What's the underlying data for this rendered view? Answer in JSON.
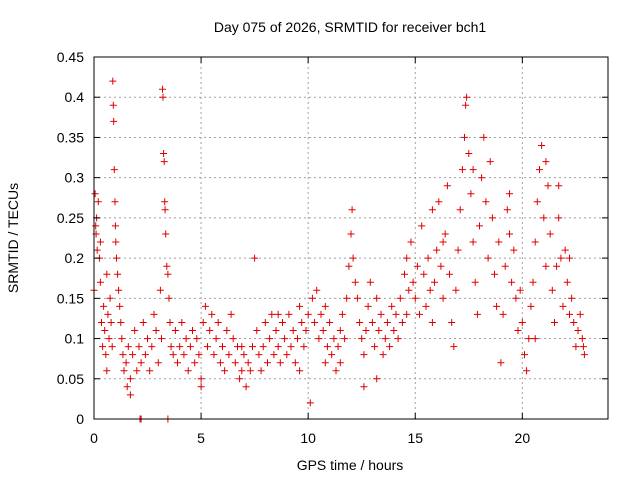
{
  "chart_data": {
    "type": "scatter",
    "title": "Day 075 of 2026, SRMTID for receiver bch1",
    "xlabel": "GPS time / hours",
    "ylabel": "SRMTID / TECUs",
    "xlim": [
      0,
      24
    ],
    "ylim": [
      0,
      0.45
    ],
    "x_ticks": [
      0,
      5,
      10,
      15,
      20
    ],
    "y_ticks": [
      0,
      0.05,
      0.1,
      0.15,
      0.2,
      0.25,
      0.3,
      0.35,
      0.4,
      0.45
    ],
    "x_tick_labels": [
      "0",
      "5",
      "10",
      "15",
      "20"
    ],
    "y_tick_labels": [
      "0",
      "0.05",
      "0.1",
      "0.15",
      "0.2",
      "0.25",
      "0.3",
      "0.35",
      "0.4",
      "0.45"
    ],
    "grid": true,
    "marker": "+",
    "color": "#e00000",
    "series": [
      {
        "name": "bch1",
        "points": [
          [
            0.0,
            0.16
          ],
          [
            0.05,
            0.28
          ],
          [
            0.08,
            0.24
          ],
          [
            0.1,
            0.23
          ],
          [
            0.12,
            0.25
          ],
          [
            0.15,
            0.21
          ],
          [
            0.2,
            0.27
          ],
          [
            0.25,
            0.2
          ],
          [
            0.3,
            0.17
          ],
          [
            0.35,
            0.12
          ],
          [
            0.4,
            0.09
          ],
          [
            0.45,
            0.14
          ],
          [
            0.5,
            0.11
          ],
          [
            0.55,
            0.08
          ],
          [
            0.6,
            0.18
          ],
          [
            0.65,
            0.13
          ],
          [
            0.7,
            0.1
          ],
          [
            0.75,
            0.15
          ],
          [
            0.8,
            0.12
          ],
          [
            0.85,
            0.09
          ],
          [
            0.88,
            0.42
          ],
          [
            0.9,
            0.39
          ],
          [
            0.92,
            0.37
          ],
          [
            0.95,
            0.31
          ],
          [
            0.98,
            0.27
          ],
          [
            1.0,
            0.24
          ],
          [
            1.02,
            0.22
          ],
          [
            1.05,
            0.2
          ],
          [
            1.1,
            0.18
          ],
          [
            1.15,
            0.16
          ],
          [
            1.2,
            0.14
          ],
          [
            1.25,
            0.12
          ],
          [
            1.3,
            0.1
          ],
          [
            1.35,
            0.08
          ],
          [
            1.4,
            0.06
          ],
          [
            1.5,
            0.07
          ],
          [
            1.55,
            0.04
          ],
          [
            1.6,
            0.09
          ],
          [
            1.7,
            0.05
          ],
          [
            1.8,
            0.08
          ],
          [
            1.9,
            0.11
          ],
          [
            2.0,
            0.06
          ],
          [
            2.1,
            0.09
          ],
          [
            2.2,
            0.07
          ],
          [
            2.3,
            0.12
          ],
          [
            2.4,
            0.08
          ],
          [
            2.5,
            0.1
          ],
          [
            2.6,
            0.06
          ],
          [
            2.7,
            0.09
          ],
          [
            2.8,
            0.13
          ],
          [
            2.9,
            0.11
          ],
          [
            3.0,
            0.07
          ],
          [
            3.1,
            0.16
          ],
          [
            3.15,
            0.1
          ],
          [
            3.2,
            0.41
          ],
          [
            3.22,
            0.4
          ],
          [
            3.25,
            0.33
          ],
          [
            3.28,
            0.32
          ],
          [
            3.3,
            0.27
          ],
          [
            3.32,
            0.26
          ],
          [
            3.35,
            0.23
          ],
          [
            3.4,
            0.19
          ],
          [
            3.45,
            0.18
          ],
          [
            3.5,
            0.15
          ],
          [
            3.55,
            0.12
          ],
          [
            3.6,
            0.09
          ],
          [
            3.7,
            0.08
          ],
          [
            3.8,
            0.11
          ],
          [
            3.9,
            0.07
          ],
          [
            4.0,
            0.09
          ],
          [
            4.1,
            0.12
          ],
          [
            4.2,
            0.08
          ],
          [
            4.3,
            0.1
          ],
          [
            4.4,
            0.06
          ],
          [
            4.5,
            0.09
          ],
          [
            4.6,
            0.11
          ],
          [
            4.7,
            0.07
          ],
          [
            4.8,
            0.1
          ],
          [
            4.9,
            0.08
          ],
          [
            5.0,
            0.05
          ],
          [
            5.1,
            0.12
          ],
          [
            5.2,
            0.14
          ],
          [
            5.3,
            0.09
          ],
          [
            5.4,
            0.11
          ],
          [
            5.5,
            0.13
          ],
          [
            5.6,
            0.08
          ],
          [
            5.7,
            0.1
          ],
          [
            5.8,
            0.12
          ],
          [
            5.9,
            0.07
          ],
          [
            6.0,
            0.09
          ],
          [
            6.1,
            0.06
          ],
          [
            6.2,
            0.11
          ],
          [
            6.3,
            0.08
          ],
          [
            6.4,
            0.13
          ],
          [
            6.5,
            0.1
          ],
          [
            6.6,
            0.07
          ],
          [
            6.7,
            0.09
          ],
          [
            6.8,
            0.05
          ],
          [
            6.9,
            0.06
          ],
          [
            7.0,
            0.08
          ],
          [
            7.1,
            0.04
          ],
          [
            7.2,
            0.07
          ],
          [
            7.3,
            0.06
          ],
          [
            7.4,
            0.09
          ],
          [
            7.5,
            0.2
          ],
          [
            7.6,
            0.11
          ],
          [
            7.7,
            0.08
          ],
          [
            7.8,
            0.06
          ],
          [
            7.9,
            0.09
          ],
          [
            8.0,
            0.12
          ],
          [
            8.1,
            0.07
          ],
          [
            8.2,
            0.1
          ],
          [
            8.3,
            0.13
          ],
          [
            8.4,
            0.08
          ],
          [
            8.5,
            0.11
          ],
          [
            8.6,
            0.09
          ],
          [
            8.7,
            0.07
          ],
          [
            8.8,
            0.12
          ],
          [
            8.9,
            0.1
          ],
          [
            9.0,
            0.08
          ],
          [
            9.1,
            0.13
          ],
          [
            9.2,
            0.09
          ],
          [
            9.3,
            0.11
          ],
          [
            9.4,
            0.07
          ],
          [
            9.5,
            0.1
          ],
          [
            9.6,
            0.14
          ],
          [
            9.7,
            0.12
          ],
          [
            9.8,
            0.09
          ],
          [
            9.9,
            0.11
          ],
          [
            10.0,
            0.13
          ],
          [
            10.1,
            0.02
          ],
          [
            10.2,
            0.15
          ],
          [
            10.3,
            0.12
          ],
          [
            10.4,
            0.16
          ],
          [
            10.5,
            0.1
          ],
          [
            10.6,
            0.13
          ],
          [
            10.7,
            0.11
          ],
          [
            10.8,
            0.14
          ],
          [
            10.9,
            0.09
          ],
          [
            11.0,
            0.12
          ],
          [
            11.1,
            0.08
          ],
          [
            11.2,
            0.1
          ],
          [
            11.3,
            0.06
          ],
          [
            11.4,
            0.09
          ],
          [
            11.5,
            0.11
          ],
          [
            11.6,
            0.13
          ],
          [
            11.7,
            0.1
          ],
          [
            11.8,
            0.15
          ],
          [
            11.9,
            0.19
          ],
          [
            12.0,
            0.23
          ],
          [
            12.05,
            0.26
          ],
          [
            12.1,
            0.2
          ],
          [
            12.2,
            0.17
          ],
          [
            12.3,
            0.15
          ],
          [
            12.4,
            0.12
          ],
          [
            12.5,
            0.1
          ],
          [
            12.6,
            0.08
          ],
          [
            12.7,
            0.11
          ],
          [
            12.8,
            0.14
          ],
          [
            12.9,
            0.17
          ],
          [
            13.0,
            0.12
          ],
          [
            13.1,
            0.09
          ],
          [
            13.2,
            0.15
          ],
          [
            13.3,
            0.11
          ],
          [
            13.4,
            0.13
          ],
          [
            13.5,
            0.08
          ],
          [
            13.6,
            0.1
          ],
          [
            13.7,
            0.12
          ],
          [
            13.8,
            0.09
          ],
          [
            13.9,
            0.14
          ],
          [
            14.0,
            0.11
          ],
          [
            14.1,
            0.13
          ],
          [
            14.2,
            0.1
          ],
          [
            14.3,
            0.15
          ],
          [
            14.4,
            0.12
          ],
          [
            14.5,
            0.18
          ],
          [
            14.6,
            0.2
          ],
          [
            14.7,
            0.16
          ],
          [
            14.8,
            0.22
          ],
          [
            14.9,
            0.17
          ],
          [
            15.0,
            0.15
          ],
          [
            15.1,
            0.19
          ],
          [
            15.2,
            0.13
          ],
          [
            15.3,
            0.24
          ],
          [
            15.4,
            0.18
          ],
          [
            15.5,
            0.14
          ],
          [
            15.6,
            0.2
          ],
          [
            15.7,
            0.16
          ],
          [
            15.8,
            0.12
          ],
          [
            15.9,
            0.17
          ],
          [
            16.0,
            0.21
          ],
          [
            16.1,
            0.27
          ],
          [
            16.2,
            0.19
          ],
          [
            16.3,
            0.15
          ],
          [
            16.4,
            0.23
          ],
          [
            16.5,
            0.29
          ],
          [
            16.6,
            0.18
          ],
          [
            16.7,
            0.12
          ],
          [
            16.8,
            0.09
          ],
          [
            16.9,
            0.16
          ],
          [
            17.0,
            0.21
          ],
          [
            17.1,
            0.26
          ],
          [
            17.2,
            0.31
          ],
          [
            17.3,
            0.35
          ],
          [
            17.35,
            0.39
          ],
          [
            17.4,
            0.4
          ],
          [
            17.5,
            0.33
          ],
          [
            17.6,
            0.28
          ],
          [
            17.7,
            0.22
          ],
          [
            17.8,
            0.17
          ],
          [
            17.9,
            0.13
          ],
          [
            18.0,
            0.24
          ],
          [
            18.1,
            0.3
          ],
          [
            18.2,
            0.35
          ],
          [
            18.3,
            0.27
          ],
          [
            18.4,
            0.2
          ],
          [
            18.5,
            0.32
          ],
          [
            18.6,
            0.25
          ],
          [
            18.7,
            0.18
          ],
          [
            18.8,
            0.14
          ],
          [
            18.9,
            0.22
          ],
          [
            19.0,
            0.07
          ],
          [
            19.1,
            0.13
          ],
          [
            19.2,
            0.19
          ],
          [
            19.3,
            0.26
          ],
          [
            19.4,
            0.23
          ],
          [
            19.5,
            0.17
          ],
          [
            19.6,
            0.21
          ],
          [
            19.7,
            0.15
          ],
          [
            19.8,
            0.11
          ],
          [
            19.9,
            0.16
          ],
          [
            20.0,
            0.12
          ],
          [
            20.1,
            0.08
          ],
          [
            20.2,
            0.06
          ],
          [
            20.3,
            0.1
          ],
          [
            20.4,
            0.14
          ],
          [
            20.5,
            0.17
          ],
          [
            20.6,
            0.22
          ],
          [
            20.7,
            0.27
          ],
          [
            20.8,
            0.31
          ],
          [
            20.9,
            0.34
          ],
          [
            21.0,
            0.25
          ],
          [
            21.1,
            0.19
          ],
          [
            21.2,
            0.29
          ],
          [
            21.3,
            0.23
          ],
          [
            21.4,
            0.16
          ],
          [
            21.5,
            0.12
          ],
          [
            21.6,
            0.19
          ],
          [
            21.7,
            0.25
          ],
          [
            21.8,
            0.2
          ],
          [
            21.9,
            0.14
          ],
          [
            22.0,
            0.21
          ],
          [
            22.1,
            0.17
          ],
          [
            22.2,
            0.13
          ],
          [
            22.3,
            0.15
          ],
          [
            22.4,
            0.12
          ],
          [
            22.5,
            0.09
          ],
          [
            22.6,
            0.11
          ],
          [
            22.7,
            0.13
          ],
          [
            22.8,
            0.1
          ],
          [
            22.85,
            0.09
          ],
          [
            22.9,
            0.08
          ],
          [
            0.3,
            0.22
          ],
          [
            0.6,
            0.06
          ],
          [
            1.7,
            0.03
          ],
          [
            2.15,
            0.0
          ],
          [
            2.2,
            0.0
          ],
          [
            3.45,
            0.0
          ],
          [
            5.0,
            0.04
          ],
          [
            6.9,
            0.09
          ],
          [
            8.6,
            0.13
          ],
          [
            9.6,
            0.06
          ],
          [
            10.8,
            0.07
          ],
          [
            11.5,
            0.07
          ],
          [
            12.6,
            0.04
          ],
          [
            13.2,
            0.05
          ],
          [
            14.6,
            0.13
          ],
          [
            15.8,
            0.26
          ],
          [
            16.3,
            0.22
          ],
          [
            17.7,
            0.31
          ],
          [
            19.4,
            0.28
          ],
          [
            20.6,
            0.1
          ],
          [
            21.1,
            0.32
          ],
          [
            21.7,
            0.29
          ],
          [
            22.2,
            0.2
          ]
        ]
      }
    ]
  }
}
